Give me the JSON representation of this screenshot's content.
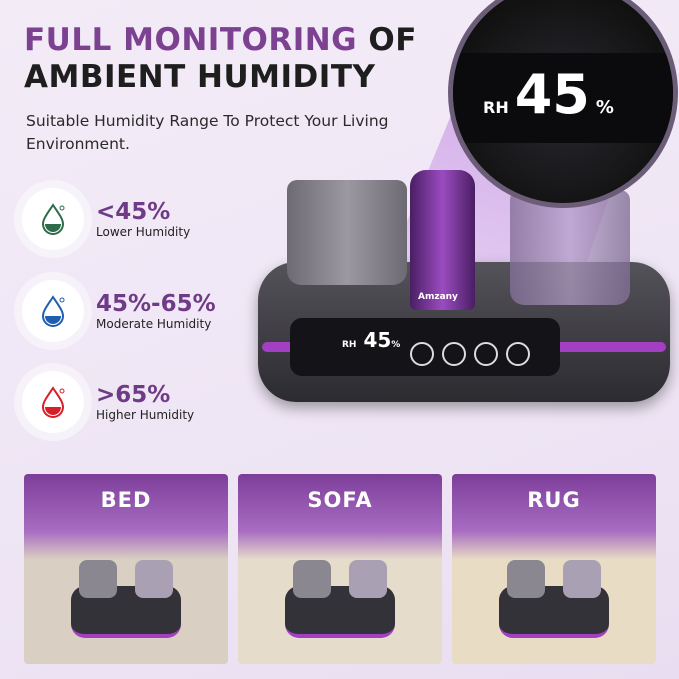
{
  "header": {
    "title_highlight": "FULL MONITORING",
    "title_rest_line1": "OF",
    "title_line2": "AMBIENT HUMIDITY",
    "subtitle": "Suitable Humidity Range To Protect Your Living Environment."
  },
  "humidity_levels": [
    {
      "range": "<45%",
      "label": "Lower Humidity",
      "icon": "water-drop-icon",
      "color": "#2e6b4a"
    },
    {
      "range": "45%-65%",
      "label": "Moderate Humidity",
      "icon": "water-drop-icon",
      "color": "#1f5fb0"
    },
    {
      "range": ">65%",
      "label": "Higher Humidity",
      "icon": "water-drop-icon",
      "color": "#d81f26"
    }
  ],
  "device": {
    "display_label": "RH",
    "display_value": "45",
    "display_unit": "%",
    "brand": "Amzany"
  },
  "scenes": [
    {
      "label": "BED",
      "bg": "#d9cfc2"
    },
    {
      "label": "SOFA",
      "bg": "#e6dccb"
    },
    {
      "label": "RUG",
      "bg": "#e8dcc4"
    }
  ],
  "colors": {
    "accent": "#7d4192",
    "device_stripe": "#a23fc2"
  }
}
